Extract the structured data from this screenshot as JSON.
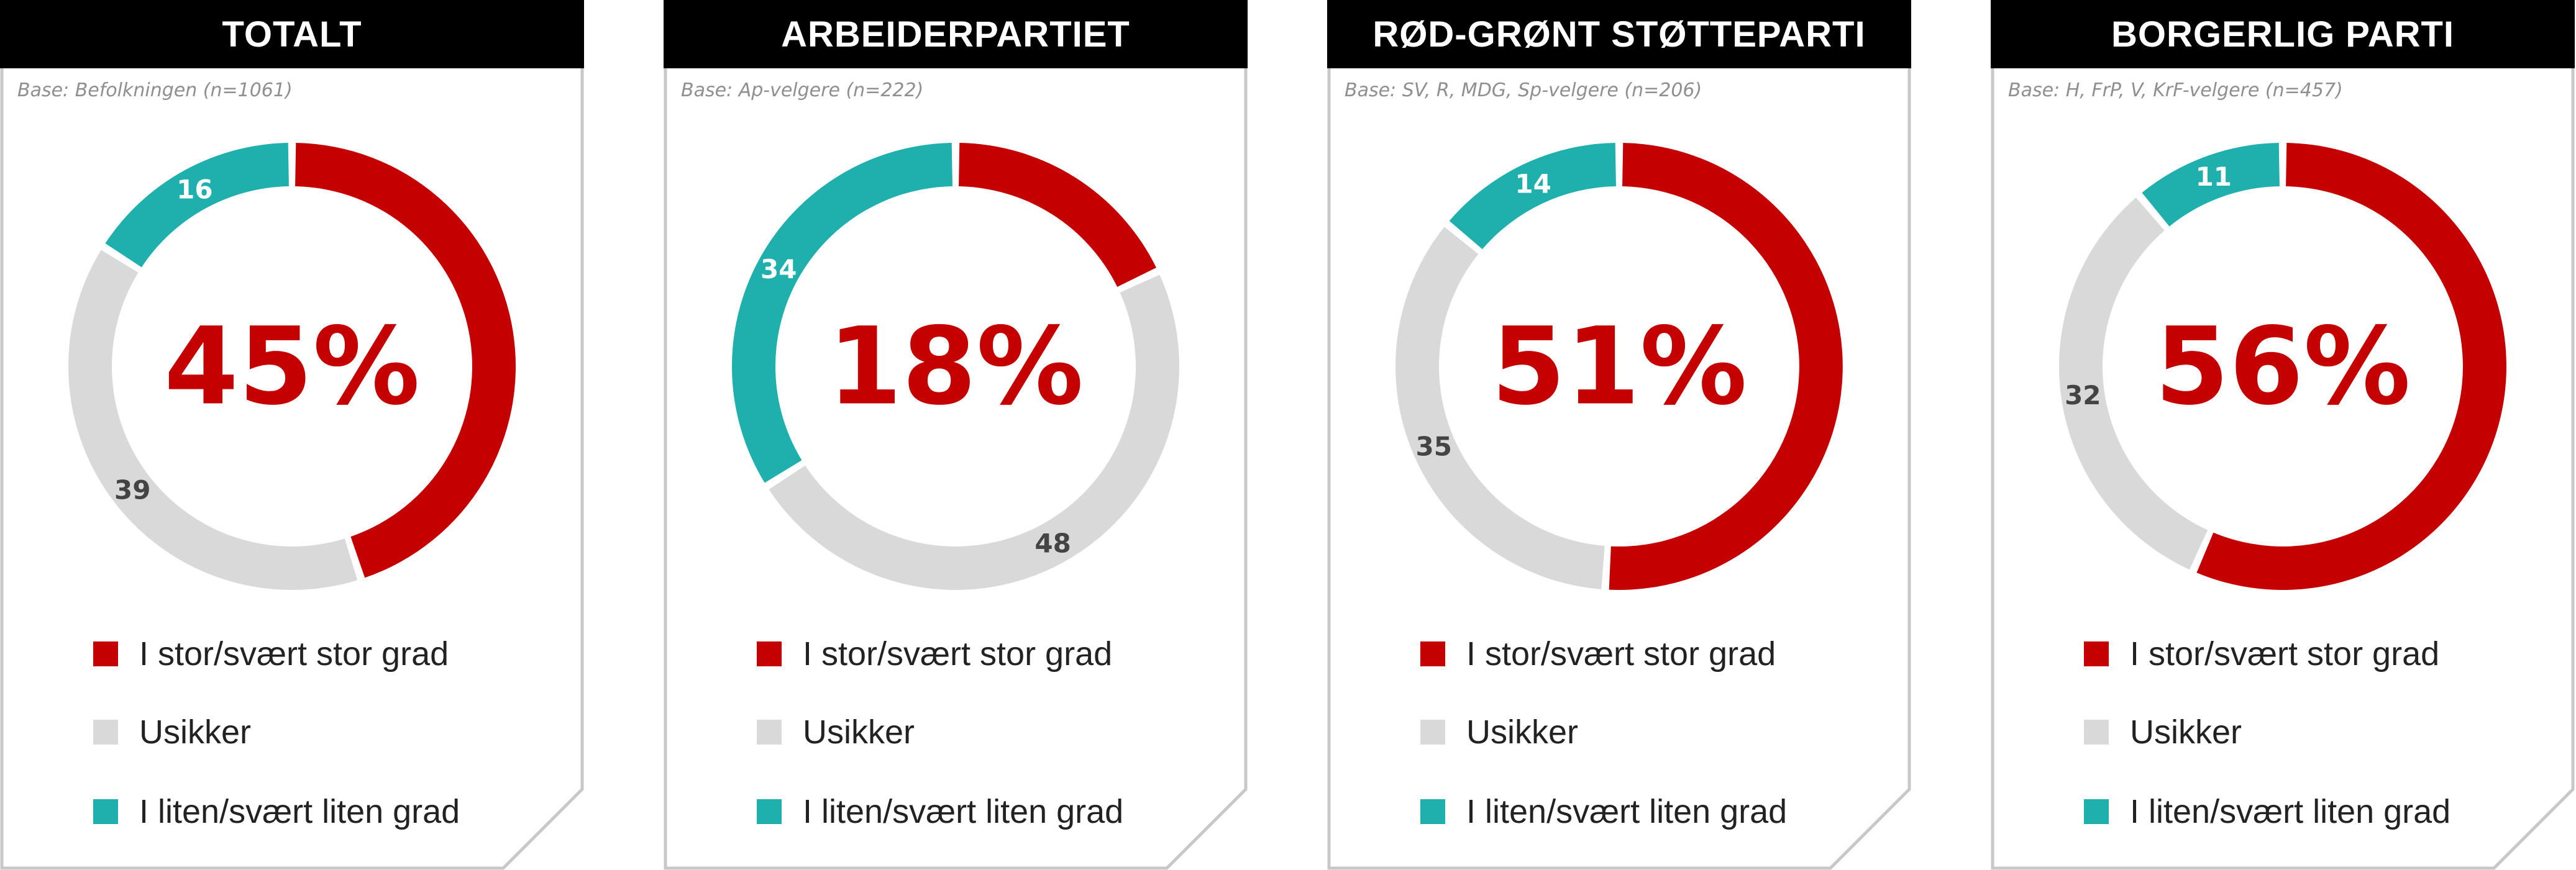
{
  "colors": {
    "stor": "#c40000",
    "usikker": "#d9d9d9",
    "liten": "#1fb0ae",
    "title_bg": "#000000",
    "title_text": "#ffffff",
    "base_text": "#8f8f8f",
    "frame": "#c8c8c8",
    "seg_label_light": "#ffffff",
    "seg_label_dark": "#444444"
  },
  "legend": [
    {
      "key": "stor",
      "label": "I stor/svært stor grad"
    },
    {
      "key": "usikker",
      "label": "Usikker"
    },
    {
      "key": "liten",
      "label": "I liten/svært liten grad"
    }
  ],
  "chart_data": [
    {
      "type": "pie",
      "title": "TOTALT",
      "subtitle": "Base: Befolkningen (n=1061)",
      "center_label": "45%",
      "categories": [
        "I stor/svært stor grad",
        "Usikker",
        "I liten/svært liten grad"
      ],
      "values": [
        45,
        39,
        16
      ],
      "data_labels": [
        "",
        "39",
        "16"
      ]
    },
    {
      "type": "pie",
      "title": "ARBEIDERPARTIET",
      "subtitle": "Base: Ap-velgere (n=222)",
      "center_label": "18%",
      "categories": [
        "I stor/svært stor grad",
        "Usikker",
        "I liten/svært liten grad"
      ],
      "values": [
        18,
        48,
        34
      ],
      "data_labels": [
        "",
        "48",
        "34"
      ]
    },
    {
      "type": "pie",
      "title": "RØD-GRØNT STØTTEPARTI",
      "subtitle": "Base: SV, R, MDG, Sp-velgere (n=206)",
      "center_label": "51%",
      "categories": [
        "I stor/svært stor grad",
        "Usikker",
        "I liten/svært liten grad"
      ],
      "values": [
        51,
        35,
        14
      ],
      "data_labels": [
        "",
        "35",
        "14"
      ]
    },
    {
      "type": "pie",
      "title": "BORGERLIG PARTI",
      "subtitle": "Base: H, FrP, V, KrF-velgere (n=457)",
      "center_label": "56%",
      "categories": [
        "I stor/svært stor grad",
        "Usikker",
        "I liten/svært liten grad"
      ],
      "values": [
        56,
        32,
        11
      ],
      "data_labels": [
        "",
        "32",
        "11"
      ]
    }
  ]
}
